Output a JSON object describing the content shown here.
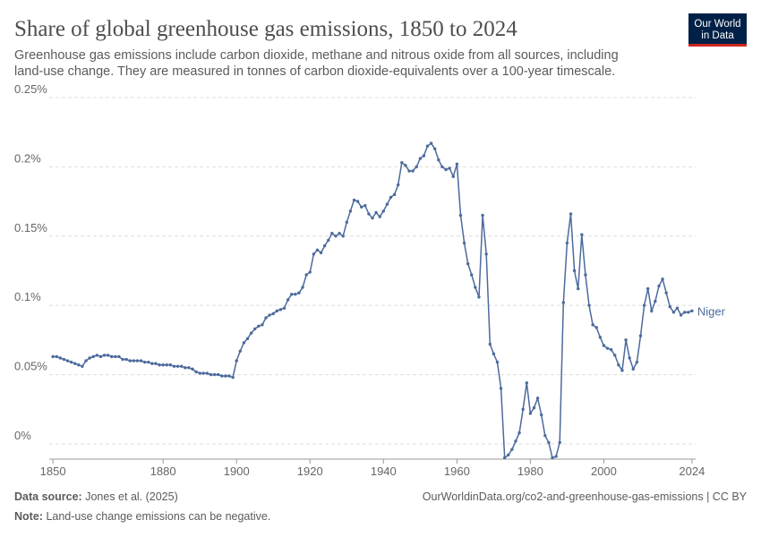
{
  "chart_data": {
    "type": "line",
    "title": "Share of global greenhouse gas emissions, 1850 to 2024",
    "subtitle": [
      "Greenhouse gas emissions include carbon dioxide, methane and nitrous oxide from all sources, including",
      "land-use change. They are measured in tonnes of carbon dioxide-equivalents over a 100-year timescale."
    ],
    "logo": [
      "Our World",
      "in Data"
    ],
    "source_label": "Data source:",
    "source": "Jones et al. (2025)",
    "url": "OurWorldinData.org/co2-and-greenhouse-gas-emissions | CC BY",
    "note_label": "Note:",
    "note": "Land-use change emissions can be negative.",
    "xlim": [
      1849,
      2025
    ],
    "xticks": [
      1850,
      1880,
      1900,
      1920,
      1940,
      1960,
      1980,
      2000,
      2024
    ],
    "ylim": [
      -0.011,
      0.25
    ],
    "yticks": [
      {
        "value": 0,
        "label": "0%"
      },
      {
        "value": 0.05,
        "label": "0.05%"
      },
      {
        "value": 0.1,
        "label": "0.1%"
      },
      {
        "value": 0.15,
        "label": "0.15%"
      },
      {
        "value": 0.2,
        "label": "0.2%"
      },
      {
        "value": 0.25,
        "label": "0.25%"
      }
    ],
    "grid": true,
    "x": [
      1850,
      1851,
      1852,
      1853,
      1854,
      1855,
      1856,
      1857,
      1858,
      1859,
      1860,
      1861,
      1862,
      1863,
      1864,
      1865,
      1866,
      1867,
      1868,
      1869,
      1870,
      1871,
      1872,
      1873,
      1874,
      1875,
      1876,
      1877,
      1878,
      1879,
      1880,
      1881,
      1882,
      1883,
      1884,
      1885,
      1886,
      1887,
      1888,
      1889,
      1890,
      1891,
      1892,
      1893,
      1894,
      1895,
      1896,
      1897,
      1898,
      1899,
      1900,
      1901,
      1902,
      1903,
      1904,
      1905,
      1906,
      1907,
      1908,
      1909,
      1910,
      1911,
      1912,
      1913,
      1914,
      1915,
      1916,
      1917,
      1918,
      1919,
      1920,
      1921,
      1922,
      1923,
      1924,
      1925,
      1926,
      1927,
      1928,
      1929,
      1930,
      1931,
      1932,
      1933,
      1934,
      1935,
      1936,
      1937,
      1938,
      1939,
      1940,
      1941,
      1942,
      1943,
      1944,
      1945,
      1946,
      1947,
      1948,
      1949,
      1950,
      1951,
      1952,
      1953,
      1954,
      1955,
      1956,
      1957,
      1958,
      1959,
      1960,
      1961,
      1962,
      1963,
      1964,
      1965,
      1966,
      1967,
      1968,
      1969,
      1970,
      1971,
      1972,
      1973,
      1974,
      1975,
      1976,
      1977,
      1978,
      1979,
      1980,
      1981,
      1982,
      1983,
      1984,
      1985,
      1986,
      1987,
      1988,
      1989,
      1990,
      1991,
      1992,
      1993,
      1994,
      1995,
      1996,
      1997,
      1998,
      1999,
      2000,
      2001,
      2002,
      2003,
      2004,
      2005,
      2006,
      2007,
      2008,
      2009,
      2010,
      2011,
      2012,
      2013,
      2014,
      2015,
      2016,
      2017,
      2018,
      2019,
      2020,
      2021,
      2022,
      2023,
      2024
    ],
    "series": [
      {
        "name": "Niger",
        "color": "#4c6a9c",
        "values": [
          0.063,
          0.063,
          0.062,
          0.061,
          0.06,
          0.059,
          0.058,
          0.057,
          0.056,
          0.06,
          0.062,
          0.063,
          0.064,
          0.063,
          0.064,
          0.064,
          0.063,
          0.063,
          0.063,
          0.061,
          0.061,
          0.06,
          0.06,
          0.06,
          0.06,
          0.059,
          0.059,
          0.058,
          0.058,
          0.057,
          0.057,
          0.057,
          0.057,
          0.056,
          0.056,
          0.056,
          0.055,
          0.055,
          0.054,
          0.052,
          0.051,
          0.051,
          0.051,
          0.05,
          0.05,
          0.05,
          0.049,
          0.049,
          0.049,
          0.048,
          0.06,
          0.067,
          0.073,
          0.076,
          0.08,
          0.083,
          0.085,
          0.086,
          0.091,
          0.093,
          0.094,
          0.096,
          0.097,
          0.098,
          0.104,
          0.108,
          0.108,
          0.109,
          0.113,
          0.122,
          0.124,
          0.137,
          0.14,
          0.138,
          0.143,
          0.147,
          0.152,
          0.15,
          0.152,
          0.15,
          0.16,
          0.168,
          0.176,
          0.175,
          0.171,
          0.172,
          0.166,
          0.163,
          0.167,
          0.164,
          0.168,
          0.173,
          0.178,
          0.18,
          0.187,
          0.203,
          0.201,
          0.197,
          0.197,
          0.2,
          0.206,
          0.208,
          0.215,
          0.217,
          0.213,
          0.205,
          0.2,
          0.198,
          0.199,
          0.193,
          0.202,
          0.165,
          0.145,
          0.13,
          0.122,
          0.113,
          0.106,
          0.165,
          0.137,
          0.072,
          0.065,
          0.059,
          0.04,
          -0.01,
          -0.008,
          -0.004,
          0.002,
          0.008,
          0.025,
          0.044,
          0.022,
          0.026,
          0.033,
          0.021,
          0.006,
          0.001,
          -0.01,
          -0.009,
          0.001,
          0.102,
          0.145,
          0.166,
          0.125,
          0.112,
          0.151,
          0.122,
          0.1,
          0.086,
          0.084,
          0.077,
          0.071,
          0.069,
          0.068,
          0.064,
          0.057,
          0.053,
          0.075,
          0.062,
          0.054,
          0.059,
          0.078,
          0.1,
          0.112,
          0.096,
          0.103,
          0.114,
          0.119,
          0.109,
          0.099,
          0.095,
          0.098,
          0.093,
          0.095,
          0.095,
          0.096
        ]
      }
    ]
  }
}
